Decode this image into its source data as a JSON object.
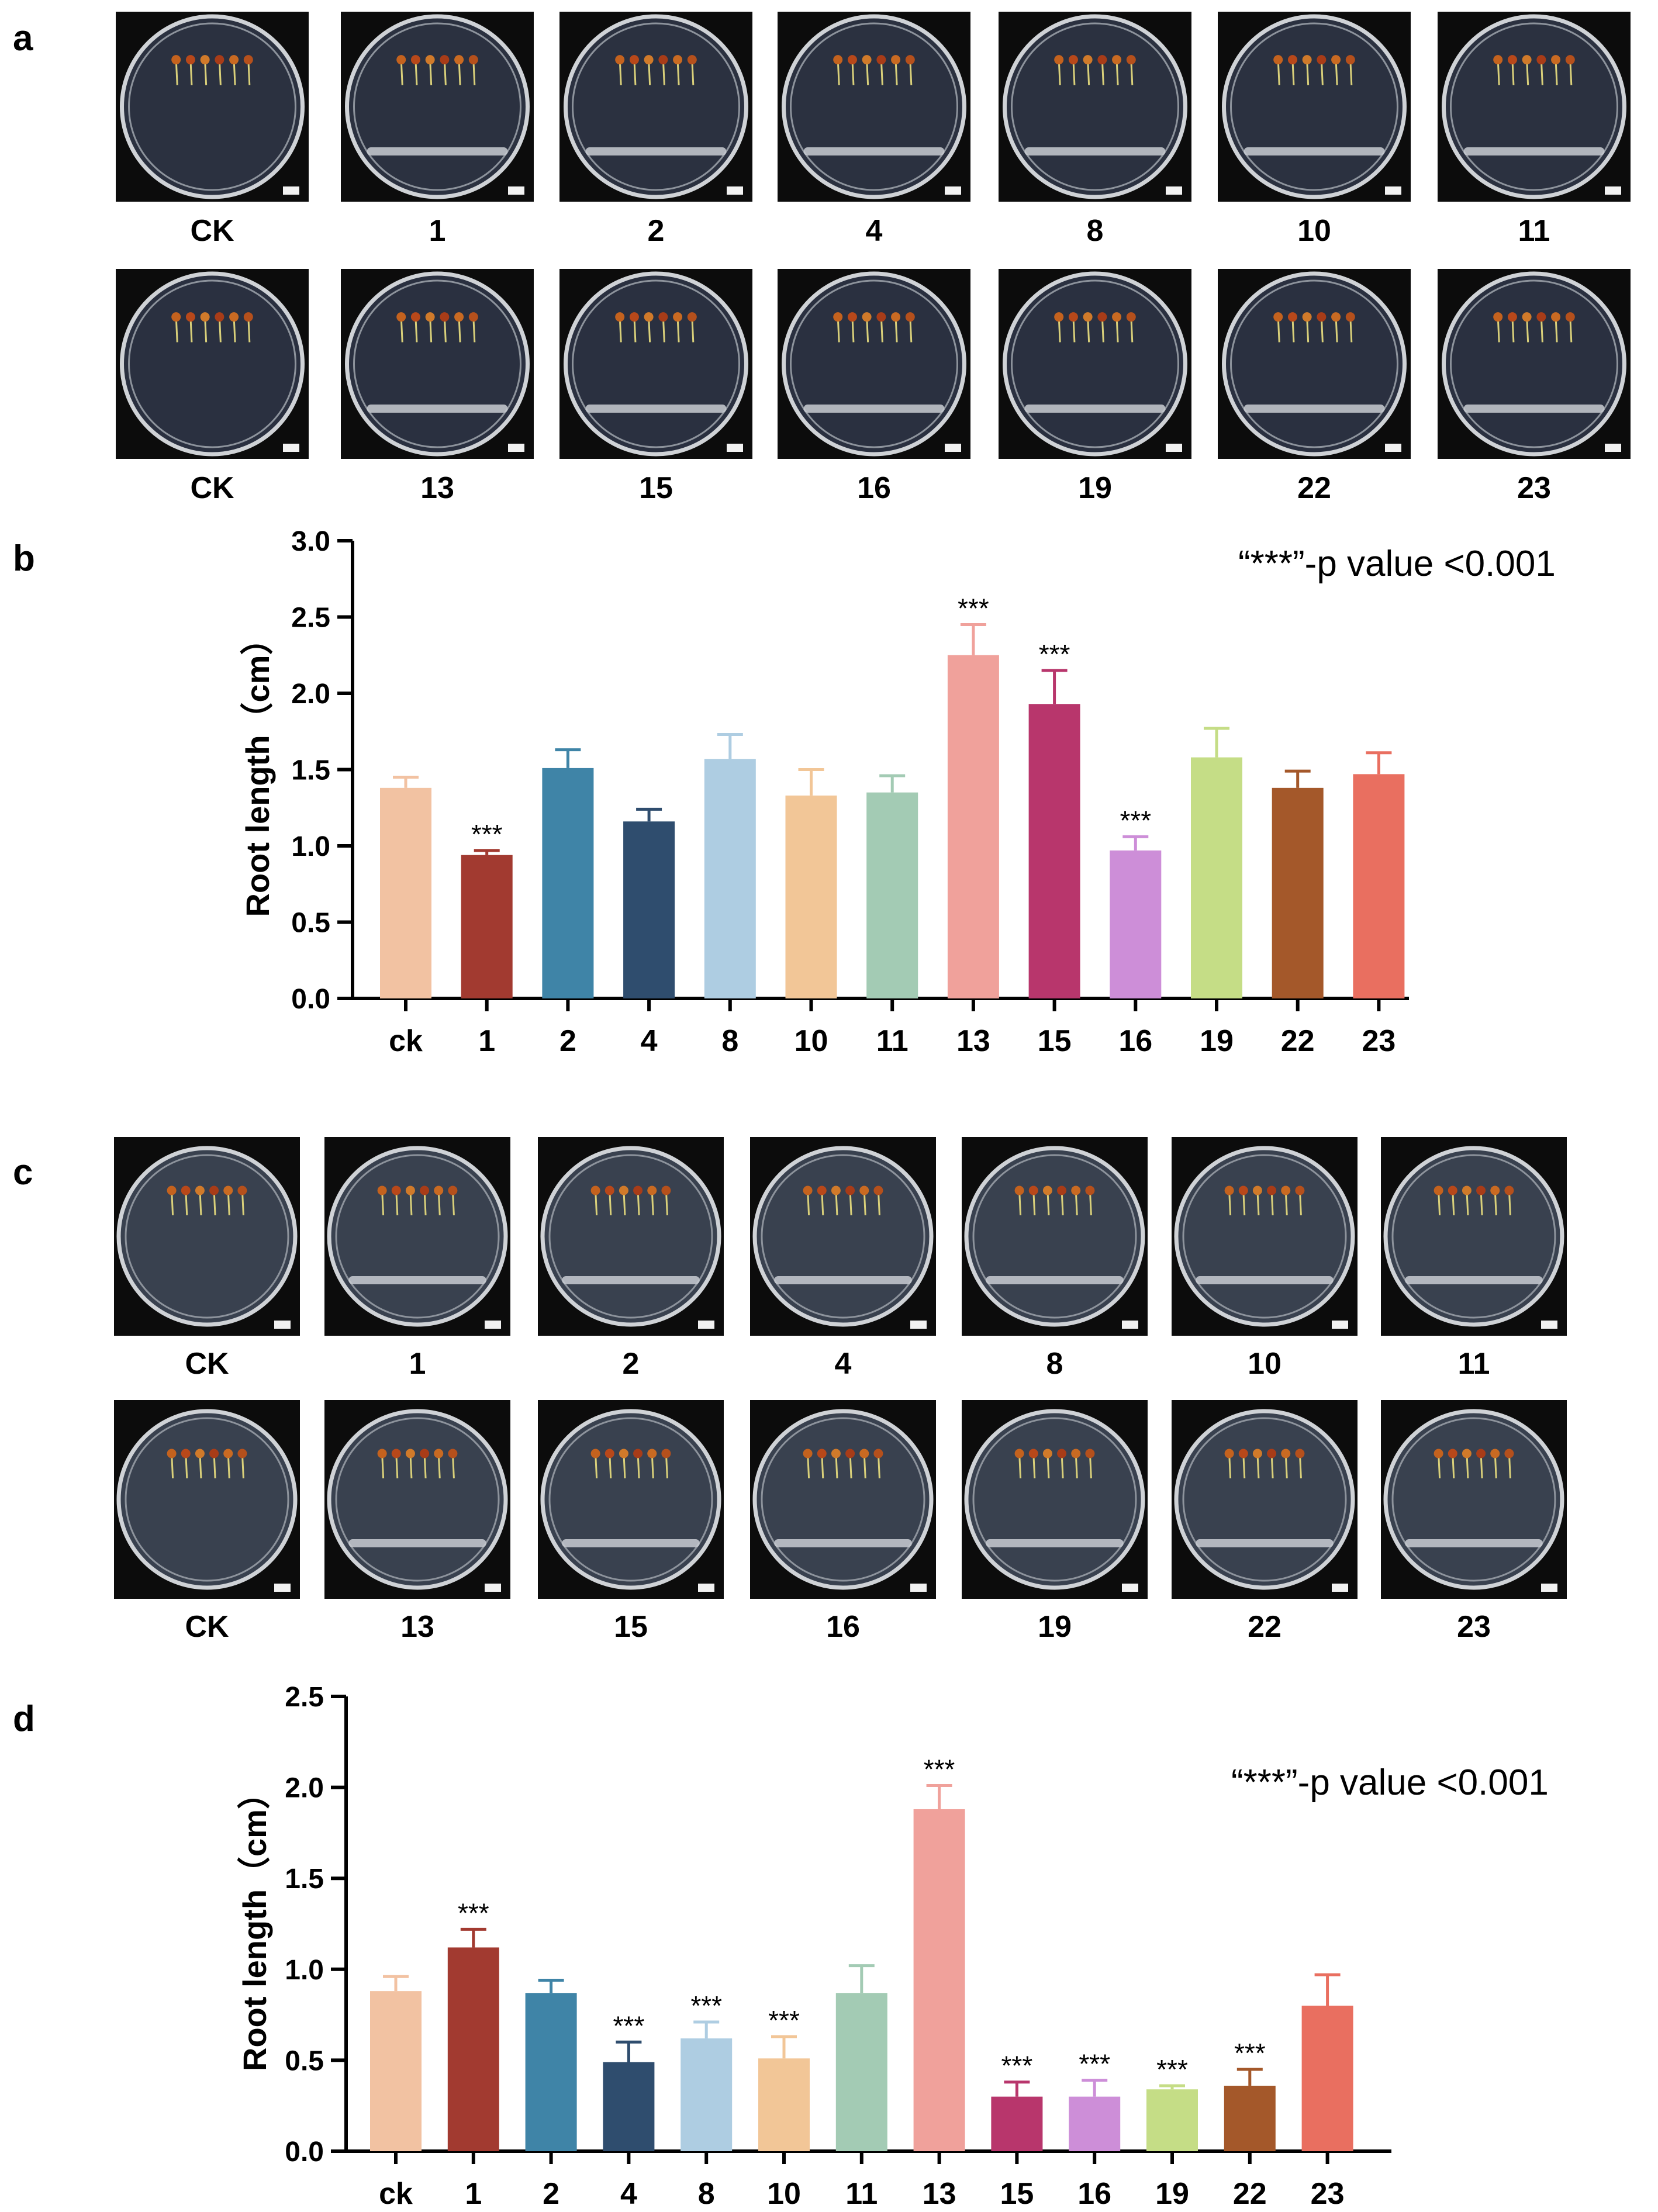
{
  "panels": {
    "a": "a",
    "b": "b",
    "c": "c",
    "d": "d"
  },
  "plate_rows": {
    "a_top": [
      "CK",
      "1",
      "2",
      "4",
      "8",
      "10",
      "11"
    ],
    "a_bottom": [
      "CK",
      "13",
      "15",
      "16",
      "19",
      "22",
      "23"
    ],
    "c_top": [
      "CK",
      "1",
      "2",
      "4",
      "8",
      "10",
      "11"
    ],
    "c_bottom": [
      "CK",
      "13",
      "15",
      "16",
      "19",
      "22",
      "23"
    ]
  },
  "chart_data": [
    {
      "type": "bar",
      "panel": "b",
      "categories": [
        "ck",
        "1",
        "2",
        "4",
        "8",
        "10",
        "11",
        "13",
        "15",
        "16",
        "19",
        "22",
        "23"
      ],
      "values": [
        1.38,
        0.94,
        1.51,
        1.16,
        1.57,
        1.33,
        1.35,
        2.25,
        1.93,
        0.97,
        1.58,
        1.38,
        1.47
      ],
      "errors": [
        0.07,
        0.03,
        0.12,
        0.08,
        0.16,
        0.17,
        0.11,
        0.2,
        0.22,
        0.09,
        0.19,
        0.11,
        0.14
      ],
      "significance": [
        "",
        "***",
        "",
        "",
        "",
        "",
        "",
        "***",
        "***",
        "***",
        "",
        "",
        ""
      ],
      "colors": [
        "#f2c2a2",
        "#a23a30",
        "#3f84a7",
        "#2f4d6e",
        "#aecde2",
        "#f2c697",
        "#a3cbb4",
        "#f0a19b",
        "#b8366c",
        "#cd8ed8",
        "#c5dd86",
        "#a4582a",
        "#e96f60"
      ],
      "ylabel": "Root length（cm）",
      "ylim": [
        0,
        3.0
      ],
      "yticks": [
        "0.0",
        "0.5",
        "1.0",
        "1.5",
        "2.0",
        "2.5",
        "3.0"
      ],
      "annotation": "“***”-p value <0.001",
      "legend": "none",
      "grid": false
    },
    {
      "type": "bar",
      "panel": "d",
      "categories": [
        "ck",
        "1",
        "2",
        "4",
        "8",
        "10",
        "11",
        "13",
        "15",
        "16",
        "19",
        "22",
        "23"
      ],
      "values": [
        0.88,
        1.12,
        0.87,
        0.49,
        0.62,
        0.51,
        0.87,
        1.88,
        0.3,
        0.3,
        0.34,
        0.36,
        0.8
      ],
      "errors": [
        0.08,
        0.1,
        0.07,
        0.11,
        0.09,
        0.12,
        0.15,
        0.13,
        0.08,
        0.09,
        0.02,
        0.09,
        0.17
      ],
      "significance": [
        "",
        "***",
        "",
        "***",
        "***",
        "***",
        "",
        "***",
        "***",
        "***",
        "***",
        "***",
        ""
      ],
      "colors": [
        "#f2c2a2",
        "#a23a30",
        "#3f84a7",
        "#2f4d6e",
        "#aecde2",
        "#f2c697",
        "#a3cbb4",
        "#f0a19b",
        "#b8366c",
        "#cd8ed8",
        "#c5dd86",
        "#a4582a",
        "#e96f60"
      ],
      "ylabel": "Root length（cm）",
      "ylim": [
        0,
        2.5
      ],
      "yticks": [
        "0.0",
        "0.5",
        "1.0",
        "1.5",
        "2.0",
        "2.5"
      ],
      "annotation": "“***”-p value <0.001",
      "legend": "none",
      "grid": false
    }
  ]
}
